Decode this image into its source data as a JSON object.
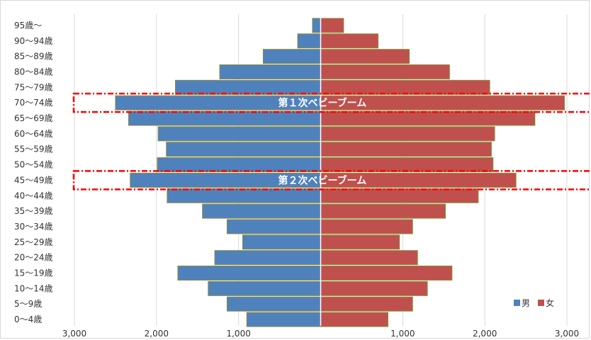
{
  "chart_data": {
    "type": "bar",
    "orientation": "horizontal-population-pyramid",
    "categories": [
      "95歳～",
      "90～94歳",
      "85～89歳",
      "80～84歳",
      "75～79歳",
      "70～74歳",
      "65～69歳",
      "60～64歳",
      "55～59歳",
      "50～54歳",
      "45～49歳",
      "40～44歳",
      "35～39歳",
      "30～34歳",
      "25～29歳",
      "20～24歳",
      "15～19歳",
      "10～14歳",
      "5～9歳",
      "0～4歳"
    ],
    "series": [
      {
        "name": "男",
        "color": "#4f81bd",
        "side": "left",
        "values": [
          100,
          280,
          700,
          1230,
          1770,
          2500,
          2340,
          1980,
          1880,
          1990,
          2320,
          1870,
          1440,
          1140,
          950,
          1290,
          1740,
          1370,
          1140,
          900
        ]
      },
      {
        "name": "女",
        "color": "#c0504d",
        "side": "right",
        "values": [
          280,
          700,
          1080,
          1570,
          2060,
          2970,
          2610,
          2120,
          2080,
          2100,
          2380,
          1920,
          1520,
          1120,
          960,
          1180,
          1600,
          1300,
          1120,
          820
        ]
      }
    ],
    "xticks": [
      "3,000",
      "2,000",
      "1,000",
      "1,000",
      "2,000",
      "3,000"
    ],
    "xlim": [
      -3000,
      3000
    ],
    "grid": true,
    "legend_position": "bottom-right",
    "annotations": [
      {
        "text": "第１次ベビーブーム",
        "category": "70～74歳"
      },
      {
        "text": "第２次ベビーブーム",
        "category": "45～49歳"
      }
    ]
  }
}
